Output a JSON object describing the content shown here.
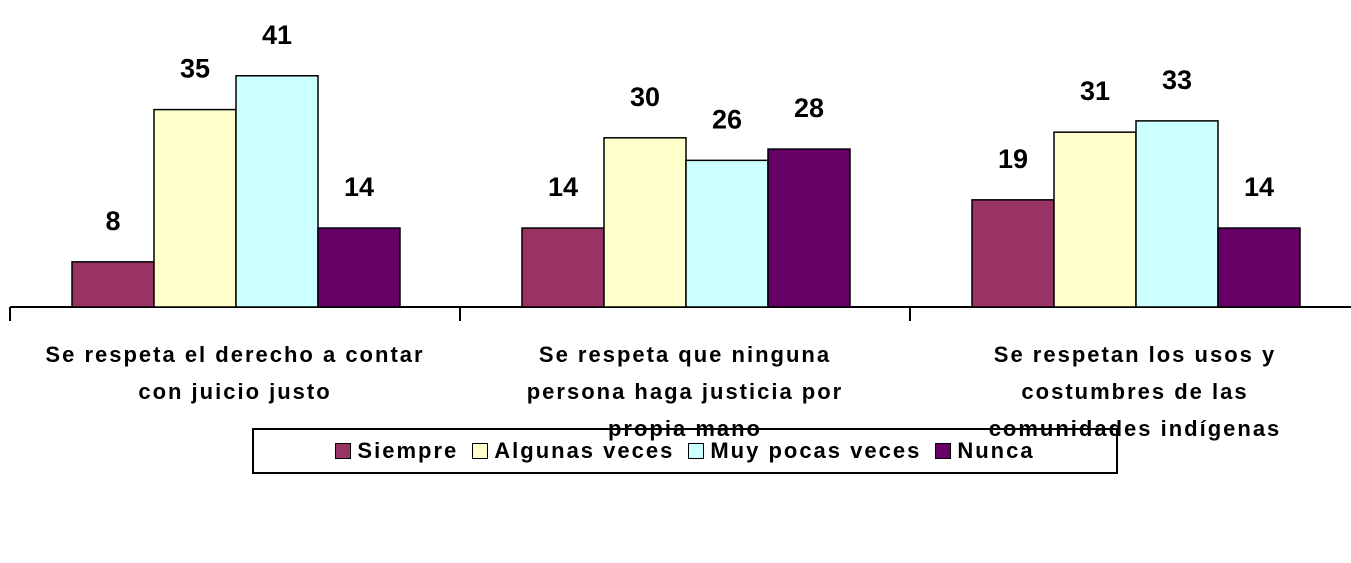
{
  "chart_data": {
    "type": "bar",
    "categories": [
      "Se respeta el derecho a contar con juicio justo",
      "Se respeta que ninguna persona haga justicia por propia mano",
      "Se respetan los usos y costumbres de las comunidades indígenas"
    ],
    "series": [
      {
        "name": "Siempre",
        "color": "#993366",
        "values": [
          8,
          14,
          19
        ]
      },
      {
        "name": "Algunas veces",
        "color": "#FFFFCC",
        "values": [
          35,
          30,
          31
        ]
      },
      {
        "name": "Muy pocas veces",
        "color": "#CCFFFF",
        "values": [
          41,
          26,
          33
        ]
      },
      {
        "name": "Nunca",
        "color": "#660066",
        "values": [
          14,
          28,
          14
        ]
      }
    ],
    "ylim": [
      0,
      50
    ],
    "legend": "bottom"
  }
}
